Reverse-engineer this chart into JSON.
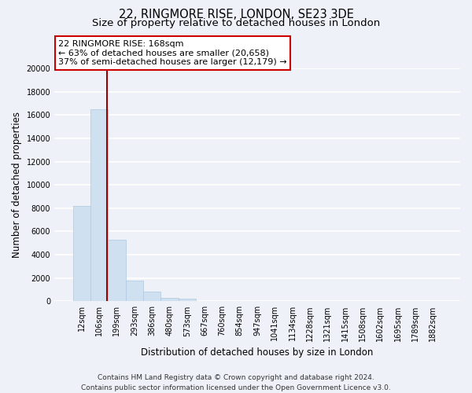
{
  "title": "22, RINGMORE RISE, LONDON, SE23 3DE",
  "subtitle": "Size of property relative to detached houses in London",
  "xlabel": "Distribution of detached houses by size in London",
  "ylabel": "Number of detached properties",
  "bar_color": "#cfe0f0",
  "bar_edge_color": "#b0c8e0",
  "categories": [
    "12sqm",
    "106sqm",
    "199sqm",
    "293sqm",
    "386sqm",
    "480sqm",
    "573sqm",
    "667sqm",
    "760sqm",
    "854sqm",
    "947sqm",
    "1041sqm",
    "1134sqm",
    "1228sqm",
    "1321sqm",
    "1415sqm",
    "1508sqm",
    "1602sqm",
    "1695sqm",
    "1789sqm",
    "1882sqm"
  ],
  "values": [
    8200,
    16500,
    5300,
    1800,
    800,
    300,
    250,
    0,
    0,
    0,
    0,
    0,
    0,
    0,
    0,
    0,
    0,
    0,
    0,
    0,
    0
  ],
  "ylim": [
    0,
    20000
  ],
  "yticks": [
    0,
    2000,
    4000,
    6000,
    8000,
    10000,
    12000,
    14000,
    16000,
    18000,
    20000
  ],
  "property_line_label": "22 RINGMORE RISE: 168sqm",
  "annotation_smaller": "← 63% of detached houses are smaller (20,658)",
  "annotation_larger": "37% of semi-detached houses are larger (12,179) →",
  "footer_line1": "Contains HM Land Registry data © Crown copyright and database right 2024.",
  "footer_line2": "Contains public sector information licensed under the Open Government Licence v3.0.",
  "background_color": "#eef2f8",
  "grid_color": "#ffffff",
  "title_fontsize": 10.5,
  "subtitle_fontsize": 9.5,
  "axis_label_fontsize": 8.5,
  "tick_fontsize": 7,
  "annotation_fontsize": 8,
  "footer_fontsize": 6.5
}
